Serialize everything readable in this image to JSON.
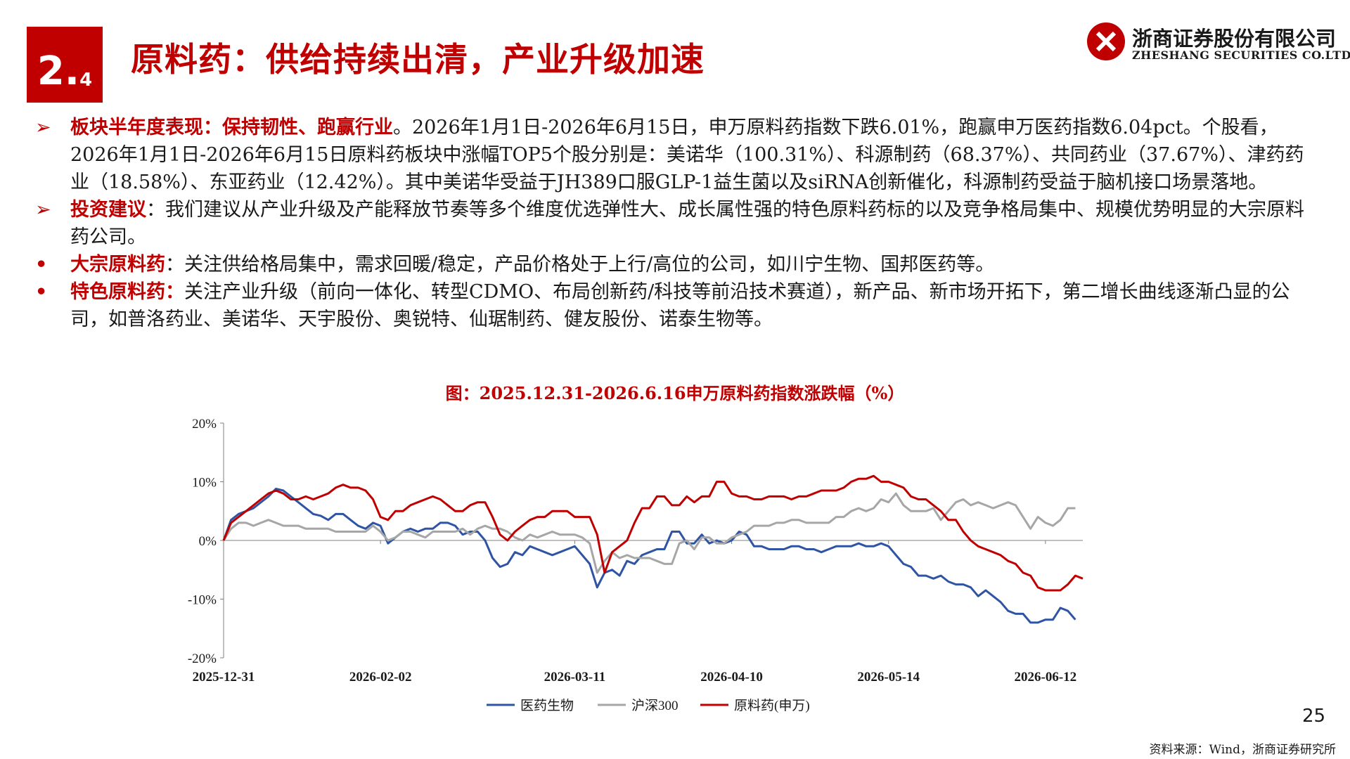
{
  "header": {
    "section_major": "2.",
    "section_minor": "4",
    "title": "原料药：供给持续出清，产业升级加速",
    "logo_cn": "浙商证券股份有限公司",
    "logo_en": "ZHESHANG SECURITIES CO.LTD",
    "brand_color": "#c00000"
  },
  "paragraphs": [
    {
      "marker": "➢",
      "lead": "板块半年度表现：保持韧性、跑赢行业",
      "text": "。2026年1月1日-2026年6月15日，申万原料药指数下跌6.01%，跑赢申万医药指数6.04pct。个股看，2026年1月1日-2026年6月15日原料药板块中涨幅TOP5个股分别是：美诺华（100.31%）、科源制药（68.37%）、共同药业（37.67%）、津药药业（18.58%）、东亚药业（12.42%）。其中美诺华受益于JH389口服GLP-1益生菌以及siRNA创新催化，科源制药受益于脑机接口场景落地。"
    },
    {
      "marker": "➢",
      "lead": "投资建议",
      "text": "：我们建议从产业升级及产能释放节奏等多个维度优选弹性大、成长属性强的特色原料药标的以及竞争格局集中、规模优势明显的大宗原料药公司。"
    },
    {
      "marker": "•",
      "lead": "大宗原料药",
      "text": "：关注供给格局集中，需求回暖/稳定，产品价格处于上行/高位的公司，如川宁生物、国邦医药等。"
    },
    {
      "marker": "•",
      "lead": "特色原料药：",
      "text": "关注产业升级（前向一体化、转型CDMO、布局创新药/科技等前沿技术赛道），新产品、新市场开拓下，第二增长曲线逐渐凸显的公司，如普洛药业、美诺华、天宇股份、奥锐特、仙琚制药、健友股份、诺泰生物等。"
    }
  ],
  "chart_title": "图：2025.12.31-2026.6.16申万原料药指数涨跌幅（%）",
  "chart_data": {
    "type": "line",
    "x_tick_labels": [
      "2025-12-31",
      "2026-02-02",
      "2026-03-11",
      "2026-04-10",
      "2026-05-14",
      "2026-06-12"
    ],
    "x_tick_index": [
      0,
      21,
      47,
      68,
      89,
      110
    ],
    "y_tick_labels": [
      "20%",
      "10%",
      "0%",
      "-10%",
      "-20%"
    ],
    "ylim": [
      -20,
      20
    ],
    "grid": false,
    "legend_position": "bottom",
    "series": [
      {
        "name": "医药生物",
        "color": "#2e54a3",
        "values": [
          0,
          3.5,
          4.5,
          5,
          5.5,
          6.5,
          7.5,
          8.8,
          8.5,
          7.5,
          6.5,
          5.5,
          4.5,
          4.2,
          3.5,
          4.5,
          4.5,
          3.5,
          2.5,
          2,
          3,
          2.5,
          -0.5,
          0.5,
          1.5,
          2,
          1.5,
          2,
          2,
          3,
          3,
          2.5,
          1,
          1.5,
          1.5,
          0,
          -3,
          -4.5,
          -4,
          -2,
          -2.5,
          -1,
          -1.5,
          -2,
          -2.5,
          -2,
          -1.5,
          -1,
          -2.5,
          -4,
          -8,
          -5.5,
          -5,
          -6,
          -3.5,
          -4,
          -2.5,
          -2,
          -1.5,
          -1.5,
          1.5,
          1.5,
          -0.5,
          -0.5,
          1,
          -0.5,
          0,
          -0.5,
          0,
          1.5,
          1,
          -1,
          -1,
          -1.5,
          -1.5,
          -1.5,
          -1,
          -1,
          -1.5,
          -1.5,
          -2,
          -1.5,
          -1,
          -1,
          -1,
          -0.5,
          -1,
          -1,
          -0.5,
          -1,
          -2.5,
          -4,
          -4.5,
          -6,
          -6,
          -6.5,
          -6,
          -7,
          -7.5,
          -7.5,
          -8,
          -9.5,
          -8.5,
          -9.5,
          -10.5,
          -12,
          -12.5,
          -12.5,
          -14,
          -14,
          -13.5,
          -13.5,
          -11.5,
          -12,
          -13.5
        ]
      },
      {
        "name": "沪深300",
        "color": "#a6a6a6",
        "values": [
          0,
          2,
          3,
          3,
          2.5,
          3,
          3.5,
          3,
          2.5,
          2.5,
          2.5,
          2,
          2,
          2,
          2,
          1.5,
          1.5,
          1.5,
          1.5,
          1.5,
          2.5,
          1.5,
          0,
          0.5,
          1.5,
          1.5,
          1,
          0.5,
          1.5,
          1.5,
          1.5,
          1.5,
          2,
          1,
          2,
          2.5,
          2,
          2,
          1.5,
          0.5,
          0,
          1,
          0.5,
          1,
          1.5,
          1,
          1,
          1,
          0.5,
          -0.5,
          -5.5,
          -3.5,
          -2,
          -3,
          -2.5,
          -3,
          -3,
          -3,
          -3.5,
          -4,
          -4,
          -0.5,
          0,
          -1.5,
          0.5,
          0.5,
          -0.5,
          -0.5,
          0.5,
          1,
          1.5,
          2.5,
          2.5,
          2.5,
          3,
          3,
          3.5,
          3.5,
          3,
          3,
          3,
          3,
          4,
          4,
          5,
          5.5,
          5,
          5.5,
          7,
          6.5,
          8,
          6,
          5,
          5,
          5,
          5.5,
          3.5,
          5,
          6.5,
          7,
          6,
          6.5,
          6,
          5.5,
          6,
          6.5,
          6,
          4,
          2,
          4,
          3,
          2.5,
          3.5,
          5.5,
          5.5
        ]
      },
      {
        "name": "原料药(申万)",
        "color": "#c00000",
        "values": [
          0,
          3,
          4,
          5,
          6,
          7,
          8,
          8.5,
          8,
          7,
          7,
          7.5,
          7,
          7.5,
          8,
          9,
          9.5,
          9,
          9,
          8.5,
          7,
          4,
          3.5,
          5,
          5,
          6,
          6.5,
          7,
          7.5,
          7,
          6,
          5,
          5,
          6,
          6.5,
          6.5,
          4,
          1,
          0,
          1.5,
          2.5,
          3.5,
          4,
          4,
          5,
          5,
          5,
          4,
          4,
          4,
          1,
          -5.5,
          -2,
          -1,
          0,
          3,
          5.5,
          5.5,
          7.5,
          7.5,
          6,
          6,
          7.5,
          6.5,
          7.5,
          7.5,
          10,
          10,
          8,
          7.5,
          7.5,
          7,
          7,
          7.5,
          7.5,
          7.5,
          7,
          7.5,
          7.5,
          8,
          8.5,
          8.5,
          8.5,
          9,
          10,
          10.5,
          10.5,
          11,
          10,
          10,
          9.5,
          9,
          7.5,
          7,
          7,
          6,
          5,
          3.5,
          3.5,
          1.5,
          0,
          -1,
          -1.5,
          -2,
          -2.5,
          -3.5,
          -4,
          -5.5,
          -6,
          -8,
          -8.5,
          -8.5,
          -8.5,
          -7.5,
          -6,
          -6.5
        ]
      }
    ]
  },
  "page_number": "25",
  "source": "资料来源：Wind，浙商证券研究所"
}
